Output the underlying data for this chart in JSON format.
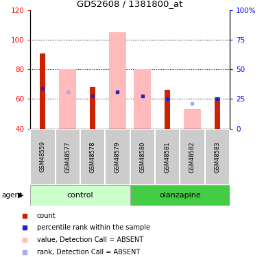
{
  "title": "GDS2608 / 1381800_at",
  "samples": [
    "GSM48559",
    "GSM48577",
    "GSM48578",
    "GSM48579",
    "GSM48580",
    "GSM48581",
    "GSM48582",
    "GSM48583"
  ],
  "red_bars": [
    91,
    null,
    68,
    null,
    null,
    66,
    null,
    61
  ],
  "pink_bars": [
    null,
    80,
    null,
    105,
    80,
    null,
    53,
    null
  ],
  "blue_dots": [
    67,
    null,
    62,
    65,
    62,
    60,
    null,
    60
  ],
  "lightblue_dots": [
    null,
    65,
    null,
    null,
    null,
    null,
    57,
    null
  ],
  "ylim_left": [
    40,
    120
  ],
  "ylim_right": [
    0,
    100
  ],
  "yticks_left": [
    40,
    60,
    80,
    100,
    120
  ],
  "yticks_right": [
    0,
    25,
    50,
    75,
    100
  ],
  "grid_lines": [
    60,
    80,
    100
  ],
  "colors": {
    "red": "#cc2200",
    "pink": "#ffbbbb",
    "blue": "#2222cc",
    "lightblue": "#aaaaee",
    "control_bg_light": "#ccffcc",
    "control_bg_dark": "#44cc44",
    "olanzapine_bg": "#44cc44",
    "sample_bg": "#cccccc"
  },
  "legend": [
    {
      "label": "count",
      "color": "#cc2200"
    },
    {
      "label": "percentile rank within the sample",
      "color": "#2222cc"
    },
    {
      "label": "value, Detection Call = ABSENT",
      "color": "#ffbbbb"
    },
    {
      "label": "rank, Detection Call = ABSENT",
      "color": "#aaaaee"
    }
  ],
  "control_indices": [
    0,
    1,
    2,
    3
  ],
  "olanzapine_indices": [
    4,
    5,
    6,
    7
  ]
}
